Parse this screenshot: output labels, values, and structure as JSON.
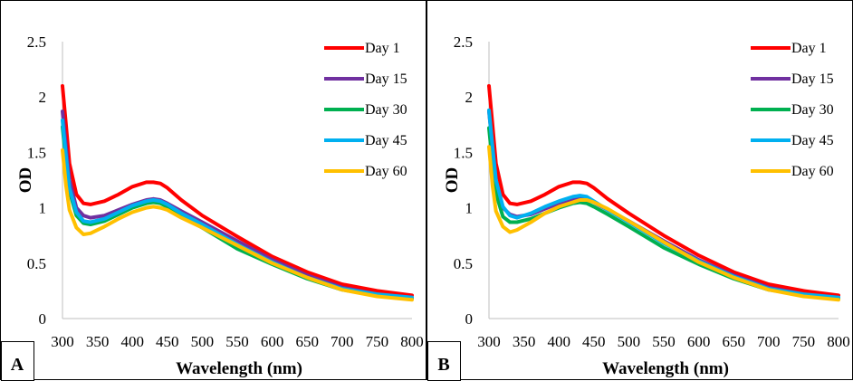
{
  "chart_data": [
    {
      "type": "line",
      "panel_label": "A",
      "xlabel": "Wavelength (nm)",
      "ylabel": "OD",
      "xlim": [
        300,
        800
      ],
      "ylim": [
        0,
        2.5
      ],
      "x_ticks": [
        "300",
        "350",
        "400",
        "450",
        "500",
        "550",
        "600",
        "650",
        "700",
        "750",
        "800"
      ],
      "y_ticks": [
        "0",
        "0.5",
        "1",
        "1.5",
        "2",
        "2.5"
      ],
      "grid": false,
      "legend_position": "top-right",
      "series": [
        {
          "name": "Day 1",
          "color": "#ff0000",
          "x": [
            300,
            305,
            310,
            320,
            330,
            340,
            360,
            380,
            400,
            420,
            430,
            440,
            450,
            470,
            500,
            550,
            600,
            650,
            700,
            750,
            800
          ],
          "y": [
            2.1,
            1.75,
            1.4,
            1.12,
            1.04,
            1.03,
            1.06,
            1.12,
            1.19,
            1.23,
            1.23,
            1.22,
            1.18,
            1.07,
            0.93,
            0.74,
            0.56,
            0.42,
            0.31,
            0.25,
            0.21
          ]
        },
        {
          "name": "Day 15",
          "color": "#7030a0",
          "x": [
            300,
            305,
            310,
            320,
            330,
            340,
            360,
            380,
            400,
            420,
            430,
            440,
            450,
            470,
            500,
            550,
            600,
            650,
            700,
            750,
            800
          ],
          "y": [
            1.87,
            1.55,
            1.25,
            1.0,
            0.93,
            0.91,
            0.93,
            0.98,
            1.03,
            1.07,
            1.08,
            1.07,
            1.04,
            0.97,
            0.87,
            0.7,
            0.53,
            0.39,
            0.28,
            0.22,
            0.19
          ]
        },
        {
          "name": "Day 30",
          "color": "#00b050",
          "x": [
            300,
            305,
            310,
            320,
            330,
            340,
            360,
            380,
            400,
            420,
            430,
            440,
            450,
            470,
            500,
            550,
            600,
            650,
            700,
            750,
            800
          ],
          "y": [
            1.73,
            1.42,
            1.15,
            0.93,
            0.86,
            0.85,
            0.88,
            0.94,
            1.0,
            1.04,
            1.05,
            1.04,
            1.01,
            0.93,
            0.82,
            0.63,
            0.49,
            0.36,
            0.26,
            0.21,
            0.18
          ]
        },
        {
          "name": "Day 45",
          "color": "#00b0f0",
          "x": [
            300,
            305,
            310,
            320,
            330,
            340,
            360,
            380,
            400,
            420,
            430,
            440,
            450,
            470,
            500,
            550,
            600,
            650,
            700,
            750,
            800
          ],
          "y": [
            1.79,
            1.47,
            1.18,
            0.96,
            0.88,
            0.87,
            0.9,
            0.96,
            1.02,
            1.06,
            1.07,
            1.06,
            1.03,
            0.95,
            0.85,
            0.67,
            0.51,
            0.37,
            0.27,
            0.22,
            0.19
          ]
        },
        {
          "name": "Day 60",
          "color": "#ffc000",
          "x": [
            300,
            305,
            310,
            320,
            330,
            340,
            360,
            380,
            400,
            420,
            430,
            440,
            450,
            470,
            500,
            550,
            600,
            650,
            700,
            750,
            800
          ],
          "y": [
            1.52,
            1.2,
            0.98,
            0.82,
            0.76,
            0.77,
            0.83,
            0.9,
            0.96,
            1.0,
            1.01,
            1.0,
            0.98,
            0.91,
            0.82,
            0.66,
            0.5,
            0.37,
            0.26,
            0.2,
            0.17
          ]
        }
      ]
    },
    {
      "type": "line",
      "panel_label": "B",
      "xlabel": "Wavelength (nm)",
      "ylabel": "OD",
      "xlim": [
        300,
        800
      ],
      "ylim": [
        0,
        2.5
      ],
      "x_ticks": [
        "300",
        "350",
        "400",
        "450",
        "500",
        "550",
        "600",
        "650",
        "700",
        "750",
        "800"
      ],
      "y_ticks": [
        "0",
        "0.5",
        "1",
        "1.5",
        "2",
        "2.5"
      ],
      "grid": false,
      "legend_position": "top-right",
      "series": [
        {
          "name": "Day 1",
          "color": "#ff0000",
          "x": [
            300,
            305,
            310,
            320,
            330,
            340,
            360,
            380,
            400,
            420,
            430,
            440,
            450,
            470,
            500,
            550,
            600,
            650,
            700,
            750,
            800
          ],
          "y": [
            2.1,
            1.75,
            1.4,
            1.12,
            1.04,
            1.03,
            1.06,
            1.12,
            1.19,
            1.23,
            1.23,
            1.22,
            1.18,
            1.08,
            0.95,
            0.75,
            0.57,
            0.42,
            0.31,
            0.25,
            0.21
          ]
        },
        {
          "name": "Day 15",
          "color": "#7030a0",
          "x": [
            300,
            305,
            310,
            320,
            330,
            340,
            360,
            380,
            400,
            420,
            430,
            440,
            450,
            470,
            500,
            550,
            600,
            650,
            700,
            750,
            800
          ],
          "y": [
            1.87,
            1.55,
            1.25,
            1.0,
            0.94,
            0.92,
            0.94,
            0.99,
            1.04,
            1.08,
            1.09,
            1.08,
            1.05,
            0.98,
            0.88,
            0.7,
            0.53,
            0.39,
            0.28,
            0.22,
            0.19
          ]
        },
        {
          "name": "Day 30",
          "color": "#00b050",
          "x": [
            300,
            305,
            310,
            320,
            330,
            340,
            360,
            380,
            400,
            420,
            430,
            440,
            450,
            470,
            500,
            550,
            600,
            650,
            700,
            750,
            800
          ],
          "y": [
            1.72,
            1.4,
            1.13,
            0.92,
            0.87,
            0.87,
            0.9,
            0.95,
            1.0,
            1.04,
            1.05,
            1.04,
            1.01,
            0.94,
            0.83,
            0.64,
            0.49,
            0.36,
            0.26,
            0.21,
            0.18
          ]
        },
        {
          "name": "Day 45",
          "color": "#00b0f0",
          "x": [
            300,
            305,
            310,
            320,
            330,
            340,
            360,
            380,
            400,
            420,
            430,
            440,
            450,
            470,
            500,
            550,
            600,
            650,
            700,
            750,
            800
          ],
          "y": [
            1.88,
            1.55,
            1.25,
            1.01,
            0.93,
            0.91,
            0.95,
            1.01,
            1.06,
            1.1,
            1.11,
            1.1,
            1.06,
            0.98,
            0.87,
            0.68,
            0.52,
            0.38,
            0.27,
            0.22,
            0.19
          ]
        },
        {
          "name": "Day 60",
          "color": "#ffc000",
          "x": [
            300,
            305,
            310,
            320,
            330,
            340,
            360,
            380,
            400,
            420,
            430,
            440,
            450,
            470,
            500,
            550,
            600,
            650,
            700,
            750,
            800
          ],
          "y": [
            1.55,
            1.2,
            0.97,
            0.83,
            0.78,
            0.8,
            0.87,
            0.95,
            1.01,
            1.05,
            1.07,
            1.07,
            1.05,
            0.99,
            0.88,
            0.69,
            0.51,
            0.37,
            0.26,
            0.2,
            0.17
          ]
        }
      ]
    }
  ]
}
